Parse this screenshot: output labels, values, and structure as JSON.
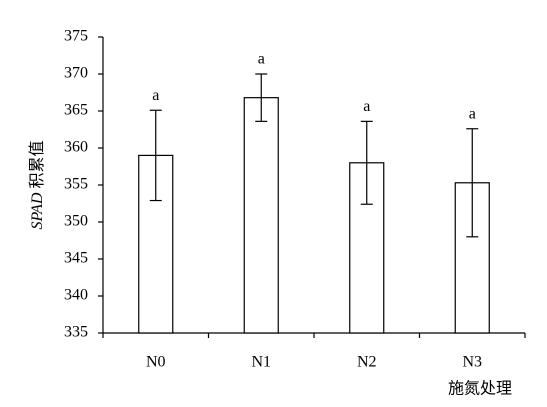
{
  "chart_data": {
    "type": "bar",
    "ylabel_parts": [
      "SPAD",
      "积累值"
    ],
    "xlabel": "施氮处理",
    "categories": [
      "N0",
      "N1",
      "N2",
      "N3"
    ],
    "values": [
      359,
      366.8,
      358,
      355.3
    ],
    "errors": [
      6.1,
      3.2,
      5.6,
      7.3
    ],
    "annotations": [
      "a",
      "a",
      "a",
      "a"
    ],
    "color": "#ffffff",
    "ylim": [
      335,
      375
    ],
    "yticks": [
      335,
      340,
      345,
      350,
      355,
      360,
      365,
      370,
      375
    ],
    "grid": false
  }
}
